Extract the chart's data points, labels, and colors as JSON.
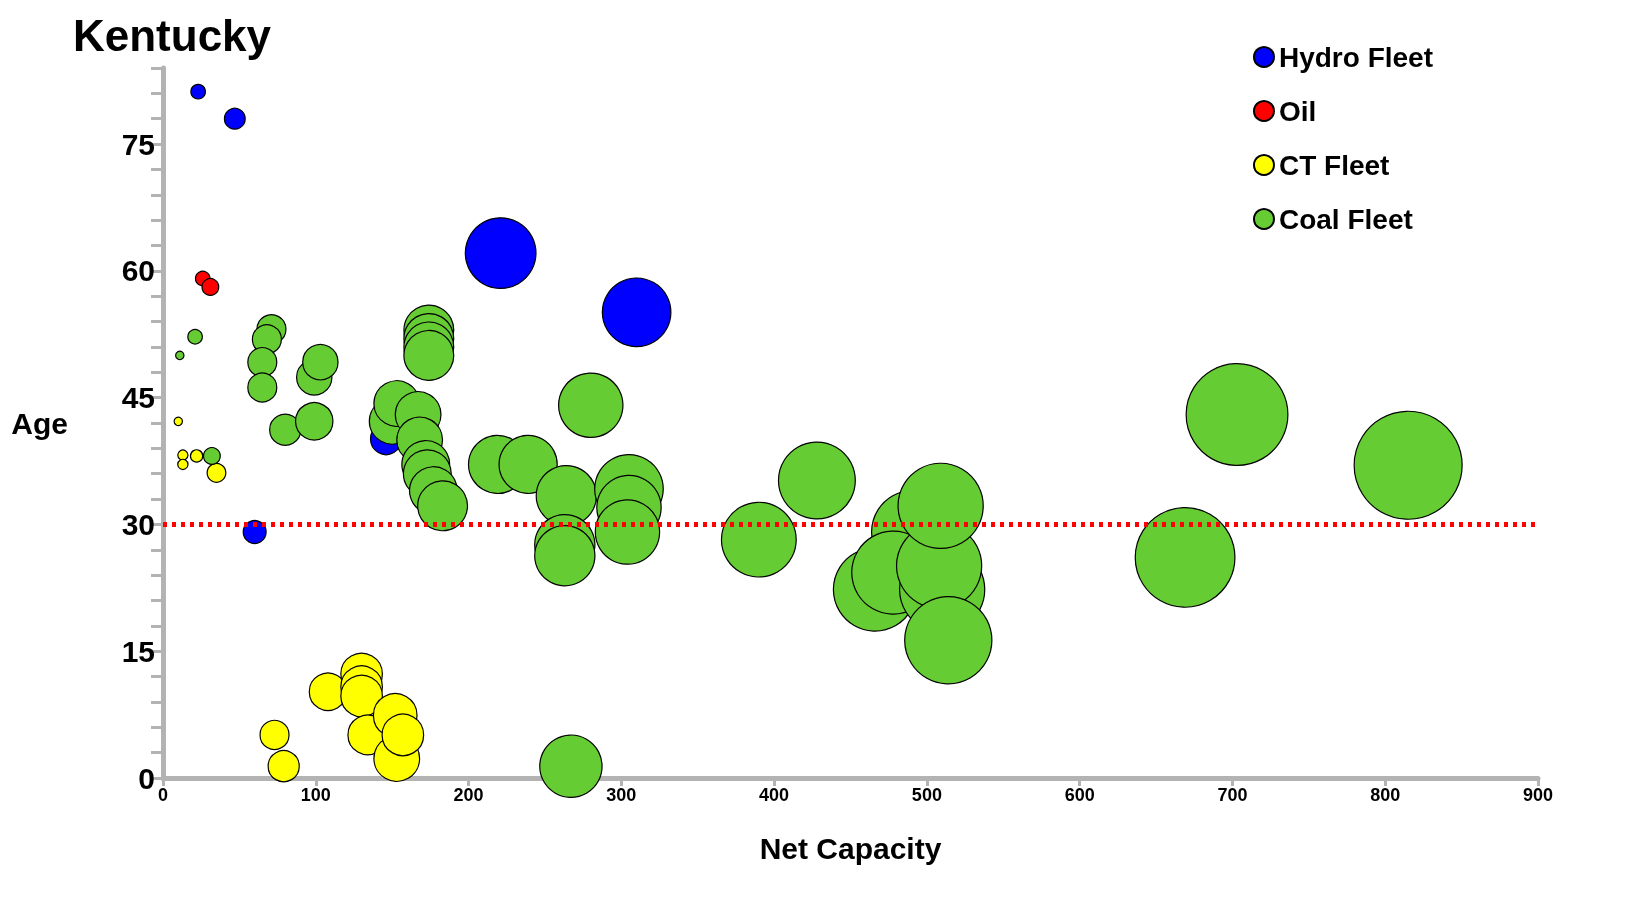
{
  "chart_data": {
    "type": "bubble",
    "title": "Kentucky",
    "xlabel": "Net Capacity",
    "ylabel": "Age",
    "xlim": [
      0,
      900
    ],
    "xticks": [
      0,
      100,
      200,
      300,
      400,
      500,
      600,
      700,
      800,
      900
    ],
    "ylim": [
      0,
      84
    ],
    "yticks": [
      0,
      {
        "value": 3,
        "label": null
      },
      {
        "value": 6,
        "label": null
      },
      {
        "value": 9,
        "label": null
      },
      {
        "value": 12,
        "label": null
      },
      15,
      {
        "value": 18,
        "label": null
      },
      {
        "value": 21,
        "label": null
      },
      {
        "value": 24,
        "label": null
      },
      {
        "value": 27,
        "label": null
      },
      30,
      {
        "value": 33,
        "label": null
      },
      {
        "value": 36,
        "label": null
      },
      {
        "value": 39,
        "label": null
      },
      {
        "value": 42,
        "label": null
      },
      45,
      {
        "value": 48,
        "label": null
      },
      {
        "value": 51,
        "label": null
      },
      {
        "value": 54,
        "label": null
      },
      {
        "value": 57,
        "label": null
      },
      60,
      {
        "value": 63,
        "label": null
      },
      {
        "value": 66,
        "label": null
      },
      {
        "value": 69,
        "label": null
      },
      {
        "value": 72,
        "label": null
      },
      75,
      {
        "value": 78,
        "label": null
      },
      {
        "value": 81,
        "label": null
      },
      {
        "value": 84,
        "label": null
      }
    ],
    "grid": false,
    "legend": "top right",
    "marker": "circle",
    "ref_lines": [
      {
        "axis": "y",
        "value": 30,
        "color": "#ff0000",
        "line_style": "dotted"
      }
    ],
    "series": [
      {
        "name": "Hydro Fleet",
        "color": "#0000ff",
        "x": [
          23,
          47,
          221,
          310,
          146,
          60
        ],
        "values": [
          81.2,
          78,
          62.1,
          55.1,
          40.1,
          29.1
        ],
        "sizes": [
          0.018,
          0.037,
          0.428,
          0.403,
          0.083,
          0.045
        ]
      },
      {
        "name": "Oil",
        "color": "#ff0000",
        "x": [
          26,
          31
        ],
        "values": [
          59.1,
          58.1
        ],
        "sizes": [
          0.018,
          0.024
        ]
      },
      {
        "name": "CT Fleet",
        "color": "#ffff00",
        "x": [
          10,
          13,
          13,
          22,
          35,
          73,
          79,
          108,
          130,
          130,
          130,
          134,
          152,
          153,
          157
        ],
        "values": [
          42.2,
          38.2,
          37.1,
          38.1,
          36.1,
          5.1,
          1.4,
          10.2,
          12.3,
          10.8,
          9.7,
          5.1,
          7.4,
          2.3,
          5.1
        ],
        "sizes": [
          0.006,
          0.009,
          0.009,
          0.013,
          0.03,
          0.072,
          0.083,
          0.12,
          0.148,
          0.148,
          0.148,
          0.134,
          0.163,
          0.179,
          0.148
        ]
      },
      {
        "name": "Coal Fleet",
        "color": "#66cc33",
        "x": [
          11,
          21,
          32,
          71,
          68,
          65,
          65,
          80,
          99,
          103,
          99,
          150,
          153,
          167,
          168,
          174,
          174,
          174,
          174,
          172,
          173,
          177,
          183,
          219,
          239,
          280,
          264,
          263,
          263,
          305,
          305,
          304,
          267,
          390,
          428,
          466,
          491,
          478,
          510,
          508,
          509,
          514,
          669,
          703,
          815
        ],
        "values": [
          50,
          52.2,
          38.1,
          53.1,
          51.9,
          49.2,
          46.2,
          41.2,
          47.4,
          49.2,
          42.2,
          42.2,
          44.3,
          43,
          40,
          53,
          52,
          51,
          50,
          37.1,
          36,
          34,
          32.2,
          37.1,
          37.1,
          44.1,
          33.4,
          27.6,
          26.3,
          34.2,
          32,
          29.1,
          1.4,
          28.2,
          35.2,
          22.3,
          29.1,
          24.3,
          22.3,
          25.1,
          32.2,
          16.3,
          26.1,
          43,
          37
        ],
        "sizes": [
          0.006,
          0.018,
          0.024,
          0.072,
          0.072,
          0.072,
          0.072,
          0.083,
          0.107,
          0.107,
          0.12,
          0.179,
          0.179,
          0.179,
          0.179,
          0.213,
          0.213,
          0.213,
          0.213,
          0.196,
          0.196,
          0.196,
          0.213,
          0.29,
          0.29,
          0.355,
          0.311,
          0.311,
          0.311,
          0.403,
          0.355,
          0.355,
          0.333,
          0.479,
          0.506,
          0.592,
          0.592,
          0.592,
          0.622,
          0.622,
          0.622,
          0.652,
          0.852,
          0.888,
          1
        ]
      }
    ]
  }
}
